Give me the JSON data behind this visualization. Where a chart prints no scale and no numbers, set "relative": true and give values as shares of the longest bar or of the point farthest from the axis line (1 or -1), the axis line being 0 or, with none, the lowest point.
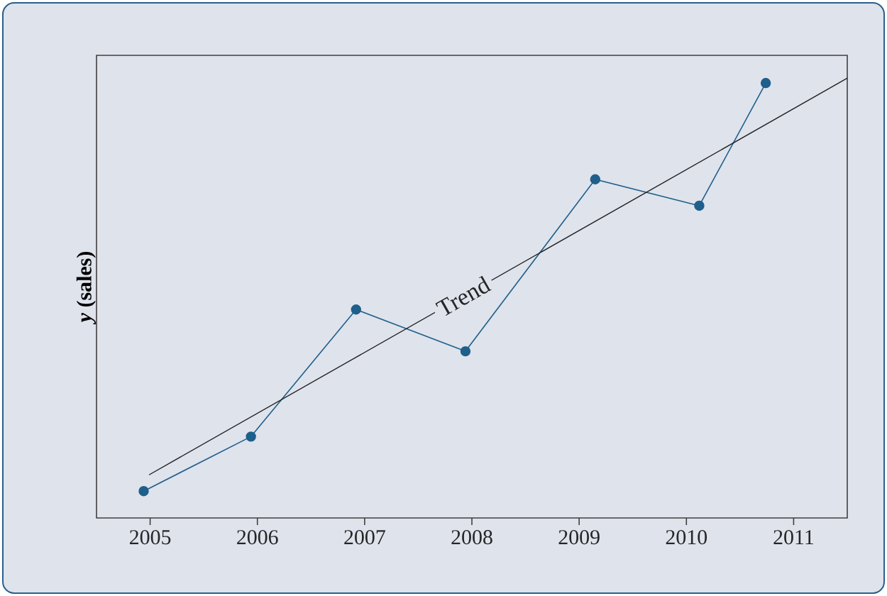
{
  "chart_data": {
    "type": "line",
    "ylabel": "*y* (sales)",
    "relative": true,
    "marker": "circle",
    "grid": false,
    "xlim": [
      2004.5,
      2011.5
    ],
    "xticks": [
      2005,
      2006,
      2007,
      2008,
      2009,
      2010,
      2011
    ],
    "series": [
      {
        "color": "#1f5f8b",
        "x": [
          2004.94,
          2005.94,
          2006.92,
          2007.94,
          2009.15,
          2010.12,
          2010.74
        ],
        "values": [
          0.061,
          0.185,
          0.474,
          0.379,
          0.77,
          0.71,
          0.989
        ]
      },
      {
        "name": "Trend",
        "type": "line",
        "marker": "none",
        "color": "#222222",
        "x": [
          2004.99,
          2011.5
        ],
        "values": [
          0.098,
          1.0
        ]
      }
    ]
  }
}
